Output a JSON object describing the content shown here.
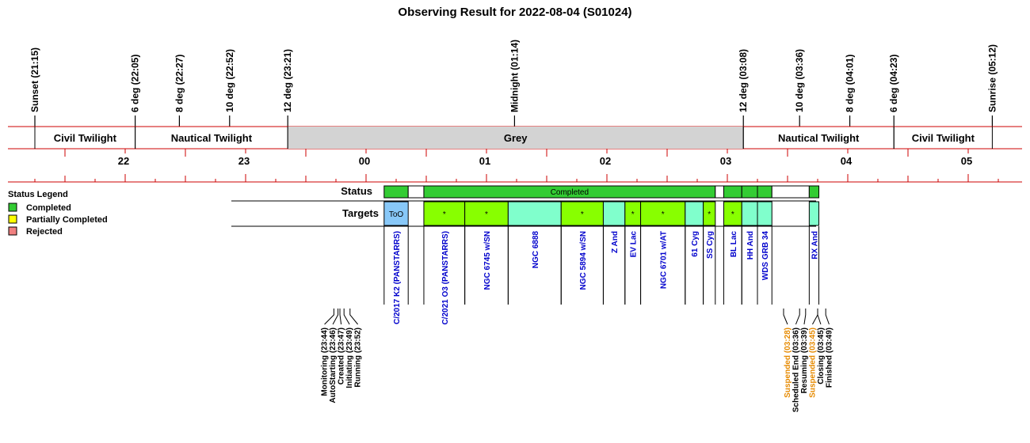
{
  "chart_data": {
    "type": "timeline",
    "title": "Observing Result for 2022-08-04 (S01024)",
    "time_range_hours": [
      21.0,
      29.5
    ],
    "sky_events": [
      {
        "label": "Sunset (21:15)",
        "t": 21.25
      },
      {
        "label": "6 deg (22:05)",
        "t": 22.083
      },
      {
        "label": "8 deg (22:27)",
        "t": 22.45
      },
      {
        "label": "10 deg (22:52)",
        "t": 22.867
      },
      {
        "label": "12 deg (23:21)",
        "t": 23.35
      },
      {
        "label": "Midnight (01:14)",
        "t": 25.233
      },
      {
        "label": "12 deg (03:08)",
        "t": 27.133
      },
      {
        "label": "10 deg (03:36)",
        "t": 27.6
      },
      {
        "label": "8 deg (04:01)",
        "t": 28.017
      },
      {
        "label": "6 deg (04:23)",
        "t": 28.383
      },
      {
        "label": "Sunrise (05:12)",
        "t": 29.2
      }
    ],
    "sky_bands": [
      {
        "label": "Civil Twilight",
        "start": 21.25,
        "end": 22.083,
        "shaded": false
      },
      {
        "label": "Nautical Twilight",
        "start": 22.083,
        "end": 23.35,
        "shaded": false
      },
      {
        "label": "Grey",
        "start": 23.35,
        "end": 27.133,
        "shaded": true
      },
      {
        "label": "Nautical Twilight",
        "start": 27.133,
        "end": 28.383,
        "shaded": false
      },
      {
        "label": "Civil Twilight",
        "start": 28.383,
        "end": 29.2,
        "shaded": false
      }
    ],
    "hour_ticks": [
      {
        "label": "22",
        "t": 22
      },
      {
        "label": "23",
        "t": 23
      },
      {
        "label": "00",
        "t": 24
      },
      {
        "label": "01",
        "t": 25
      },
      {
        "label": "02",
        "t": 26
      },
      {
        "label": "03",
        "t": 27
      },
      {
        "label": "04",
        "t": 28
      },
      {
        "label": "05",
        "t": 29
      }
    ],
    "rows": {
      "status": "Status",
      "targets": "Targets"
    },
    "status_segments": [
      {
        "start": 24.15,
        "end": 24.35,
        "status": "Completed",
        "label": ""
      },
      {
        "start": 24.35,
        "end": 24.48,
        "status": "none",
        "label": ""
      },
      {
        "start": 24.48,
        "end": 26.9,
        "status": "Completed",
        "label": "Completed"
      },
      {
        "start": 26.9,
        "end": 26.97,
        "status": "none",
        "label": ""
      },
      {
        "start": 26.97,
        "end": 27.12,
        "status": "Completed",
        "label": ""
      },
      {
        "start": 27.12,
        "end": 27.25,
        "status": "Completed",
        "label": ""
      },
      {
        "start": 27.25,
        "end": 27.37,
        "status": "Completed",
        "label": ""
      },
      {
        "start": 27.37,
        "end": 27.68,
        "status": "none",
        "label": ""
      },
      {
        "start": 27.68,
        "end": 27.76,
        "status": "Completed",
        "label": ""
      }
    ],
    "targets": [
      {
        "name": "C/2017 K2 (PANSTARRS)",
        "start": 24.15,
        "end": 24.35,
        "color": "#88c8f8",
        "mark": "ToO"
      },
      {
        "name": "C/2021 O3 (PANSTARRS)",
        "start": 24.48,
        "end": 24.82,
        "color": "#88ff00",
        "mark": "*"
      },
      {
        "name": "NGC 6745 w/SN",
        "start": 24.82,
        "end": 25.18,
        "color": "#88ff00",
        "mark": "*"
      },
      {
        "name": "NGC 6888",
        "start": 25.18,
        "end": 25.62,
        "color": "#80ffcc",
        "mark": ""
      },
      {
        "name": "NGC 5894 w/SN",
        "start": 25.62,
        "end": 25.97,
        "color": "#88ff00",
        "mark": "*"
      },
      {
        "name": "Z And",
        "start": 25.97,
        "end": 26.15,
        "color": "#80ffcc",
        "mark": ""
      },
      {
        "name": "EV Lac",
        "start": 26.15,
        "end": 26.28,
        "color": "#88ff00",
        "mark": "*"
      },
      {
        "name": "NGC 6701 w/AT",
        "start": 26.28,
        "end": 26.65,
        "color": "#88ff00",
        "mark": "*"
      },
      {
        "name": "61 Cyg",
        "start": 26.65,
        "end": 26.8,
        "color": "#80ffcc",
        "mark": ""
      },
      {
        "name": "SS Cyg",
        "start": 26.8,
        "end": 26.9,
        "color": "#88ff00",
        "mark": "*"
      },
      {
        "name": "BL Lac",
        "start": 26.97,
        "end": 27.12,
        "color": "#88ff00",
        "mark": "*"
      },
      {
        "name": "HH And",
        "start": 27.12,
        "end": 27.25,
        "color": "#80ffcc",
        "mark": ""
      },
      {
        "name": "WDS GRB 34",
        "start": 27.25,
        "end": 27.37,
        "color": "#80ffcc",
        "mark": ""
      },
      {
        "name": "RX And",
        "start": 27.68,
        "end": 27.76,
        "color": "#80ffcc",
        "mark": ""
      }
    ],
    "log_events": [
      {
        "label": "Monitoring (23:44)",
        "t": 23.733,
        "color": "#000000"
      },
      {
        "label": "AutoStarting (23:46)",
        "t": 23.767,
        "color": "#000000"
      },
      {
        "label": "Created (23:47)",
        "t": 23.783,
        "color": "#000000"
      },
      {
        "label": "Initiating (23:49)",
        "t": 23.817,
        "color": "#000000"
      },
      {
        "label": "Running (23:52)",
        "t": 23.867,
        "color": "#000000"
      },
      {
        "label": "Suspended (03:28)",
        "t": 27.467,
        "color": "#e68a00"
      },
      {
        "label": "Scheduled End (03:36)",
        "t": 27.6,
        "color": "#000000"
      },
      {
        "label": "Resuming (03:39)",
        "t": 27.65,
        "color": "#000000"
      },
      {
        "label": "Suspended (03:45)",
        "t": 27.75,
        "color": "#e68a00"
      },
      {
        "label": "Closing (03:45)",
        "t": 27.75,
        "color": "#000000"
      },
      {
        "label": "Finished (03:49)",
        "t": 27.817,
        "color": "#000000"
      }
    ],
    "legend": {
      "title": "Status Legend",
      "placement": "left",
      "items": [
        {
          "label": "Completed",
          "color": "#33cc33"
        },
        {
          "label": "Partially Completed",
          "color": "#ffff00"
        },
        {
          "label": "Rejected",
          "color": "#f08080"
        }
      ]
    },
    "colors": {
      "completed": "#33cc33",
      "grey_band": "#d3d3d3",
      "axis": "#cc0000",
      "target_text": "#0000cc"
    }
  }
}
